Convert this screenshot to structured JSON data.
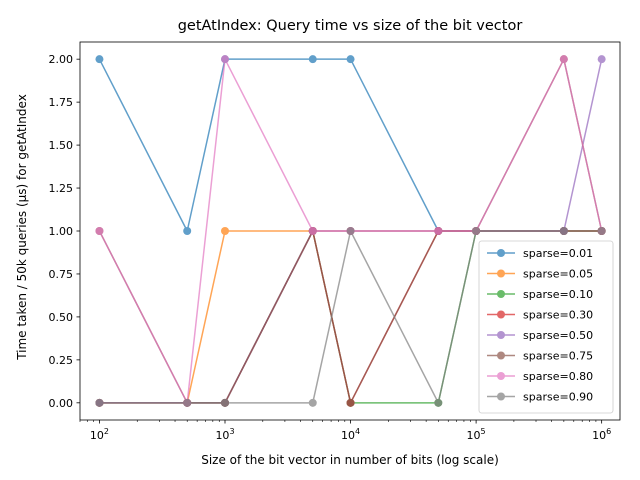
{
  "chart_data": {
    "type": "line",
    "title": "getAtIndex: Query time vs size of the bit vector",
    "xlabel": "Size of the bit vector in number of bits (log scale)",
    "ylabel": "Time taken / 50k queries (µs) for getAtIndex",
    "x_scale": "log",
    "x": [
      100,
      500,
      1000,
      5000,
      10000,
      50000,
      100000,
      500000,
      1000000
    ],
    "xlim": [
      70,
      1400000
    ],
    "ylim": [
      -0.1,
      2.1
    ],
    "x_ticks": [
      {
        "value": 100,
        "base": "10",
        "exp": "2"
      },
      {
        "value": 1000,
        "base": "10",
        "exp": "3"
      },
      {
        "value": 10000,
        "base": "10",
        "exp": "4"
      },
      {
        "value": 100000,
        "base": "10",
        "exp": "5"
      },
      {
        "value": 1000000,
        "base": "10",
        "exp": "6"
      }
    ],
    "y_ticks": [
      {
        "value": 0,
        "label": "0.00"
      },
      {
        "value": 0.25,
        "label": "0.25"
      },
      {
        "value": 0.5,
        "label": "0.50"
      },
      {
        "value": 0.75,
        "label": "0.75"
      },
      {
        "value": 1,
        "label": "1.00"
      },
      {
        "value": 1.25,
        "label": "1.25"
      },
      {
        "value": 1.5,
        "label": "1.50"
      },
      {
        "value": 1.75,
        "label": "1.75"
      },
      {
        "value": 2,
        "label": "2.00"
      }
    ],
    "grid": false,
    "legend_position": "lower-right",
    "marker": "circle",
    "series": [
      {
        "name": "sparse=0.01",
        "color": "#1f77b4",
        "values": [
          2,
          1,
          2,
          2,
          2,
          1,
          1,
          1,
          1
        ]
      },
      {
        "name": "sparse=0.05",
        "color": "#ff7f0e",
        "values": [
          0,
          0,
          1,
          1,
          1,
          1,
          1,
          1,
          1
        ]
      },
      {
        "name": "sparse=0.10",
        "color": "#2ca02c",
        "values": [
          0,
          0,
          0,
          1,
          0,
          0,
          1,
          1,
          1
        ]
      },
      {
        "name": "sparse=0.30",
        "color": "#d62728",
        "values": [
          0,
          0,
          0,
          1,
          0,
          1,
          1,
          1,
          1
        ]
      },
      {
        "name": "sparse=0.50",
        "color": "#9467bd",
        "values": [
          0,
          0,
          0,
          1,
          1,
          1,
          1,
          1,
          2
        ]
      },
      {
        "name": "sparse=0.75",
        "color": "#8c564b",
        "values": [
          1,
          0,
          0,
          1,
          0,
          1,
          1,
          2,
          1
        ]
      },
      {
        "name": "sparse=0.80",
        "color": "#e377c2",
        "values": [
          1,
          0,
          2,
          1,
          1,
          1,
          1,
          2,
          1
        ]
      },
      {
        "name": "sparse=0.90",
        "color": "#7f7f7f",
        "values": [
          0,
          0,
          0,
          0,
          1,
          0,
          1,
          1,
          1
        ]
      }
    ]
  }
}
